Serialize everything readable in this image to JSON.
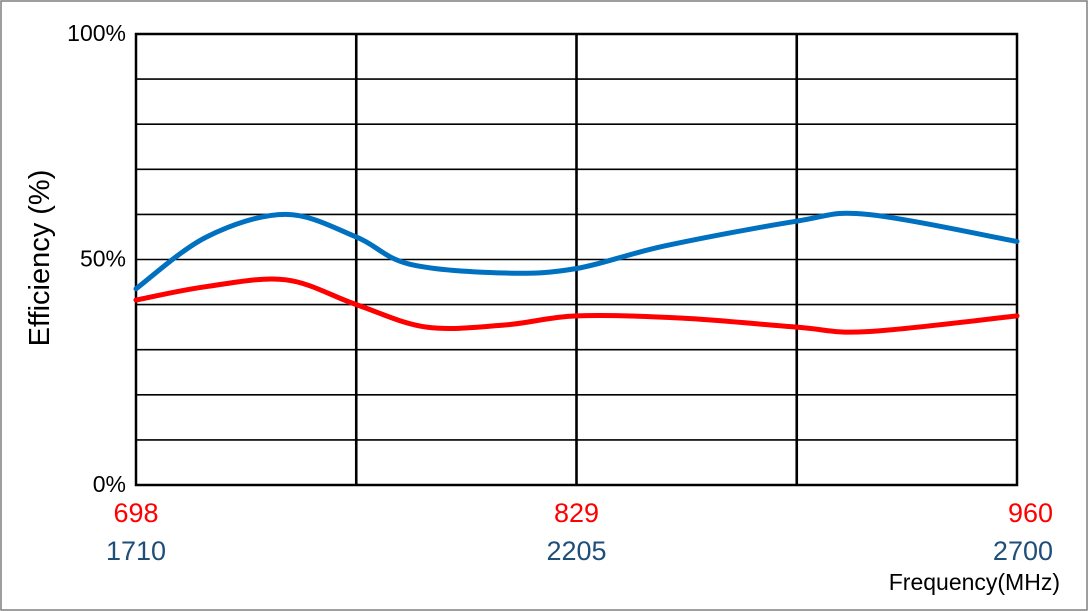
{
  "chart_data": {
    "type": "line",
    "title": "",
    "ylabel": "Efficiency (%)",
    "xlabel": "Frequency(MHz)",
    "ylim": [
      0,
      100
    ],
    "xlim": [
      0,
      1
    ],
    "y_ticks": [
      {
        "value": 0,
        "label": "0%"
      },
      {
        "value": 50,
        "label": "50%"
      },
      {
        "value": 100,
        "label": "100%"
      }
    ],
    "y_gridlines": [
      10,
      20,
      30,
      40,
      50,
      60,
      70,
      80,
      90
    ],
    "x_gridlines": [
      0.25,
      0.5,
      0.75
    ],
    "x_tick_rows": [
      {
        "color": "#ff0000",
        "ticks": [
          {
            "pos": 0,
            "label": "698"
          },
          {
            "pos": 0.5,
            "label": "829"
          },
          {
            "pos": 1,
            "label": "960"
          }
        ]
      },
      {
        "color": "#1f4e79",
        "ticks": [
          {
            "pos": 0,
            "label": "1710"
          },
          {
            "pos": 0.5,
            "label": "2205"
          },
          {
            "pos": 1,
            "label": "2700"
          }
        ]
      }
    ],
    "series": [
      {
        "color": "#0070c0",
        "x": [
          0,
          0.08,
          0.17,
          0.25,
          0.31,
          0.42,
          0.5,
          0.6,
          0.75,
          0.83,
          1
        ],
        "y": [
          43.5,
          55,
          60,
          55,
          49,
          47,
          48,
          53,
          58.5,
          60,
          54
        ]
      },
      {
        "color": "#ff0000",
        "x": [
          0,
          0.08,
          0.17,
          0.25,
          0.33,
          0.42,
          0.5,
          0.62,
          0.75,
          0.83,
          1
        ],
        "y": [
          41,
          44,
          45.5,
          40,
          35,
          35.5,
          37.5,
          37,
          35,
          34,
          37.5
        ]
      }
    ]
  }
}
